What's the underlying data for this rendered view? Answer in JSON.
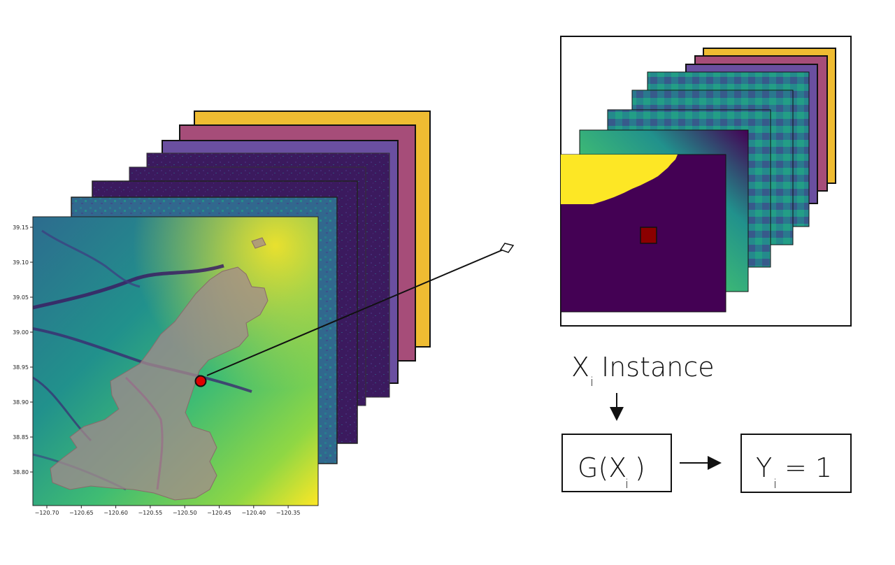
{
  "map": {
    "y_ticks": [
      "39.15",
      "39.10",
      "39.05",
      "39.00",
      "38.95",
      "38.90",
      "38.85",
      "38.80"
    ],
    "x_ticks": [
      "−120.70",
      "−120.65",
      "−120.60",
      "−120.55",
      "−120.50",
      "−120.45",
      "−120.40",
      "−120.35"
    ],
    "layer_colors": [
      "#efbc32",
      "#a64d79",
      "#6a4fa0",
      "#3b1a5e",
      "#3e1d63",
      "#3a2a70",
      "#2f6f8a"
    ],
    "marker_color": "#e00000"
  },
  "instance": {
    "label_main": "X",
    "label_sub": "i",
    "label_rest": "Instance",
    "patch_layer_colors": [
      "#efbc32",
      "#a64d79",
      "#6a4fa0"
    ],
    "center_cell_color": "#8b0000"
  },
  "model": {
    "g_prefix": "G(X",
    "g_sub": "i",
    "g_suffix": ")",
    "y_main": "Y",
    "y_sub": "i",
    "y_suffix": "= 1"
  }
}
